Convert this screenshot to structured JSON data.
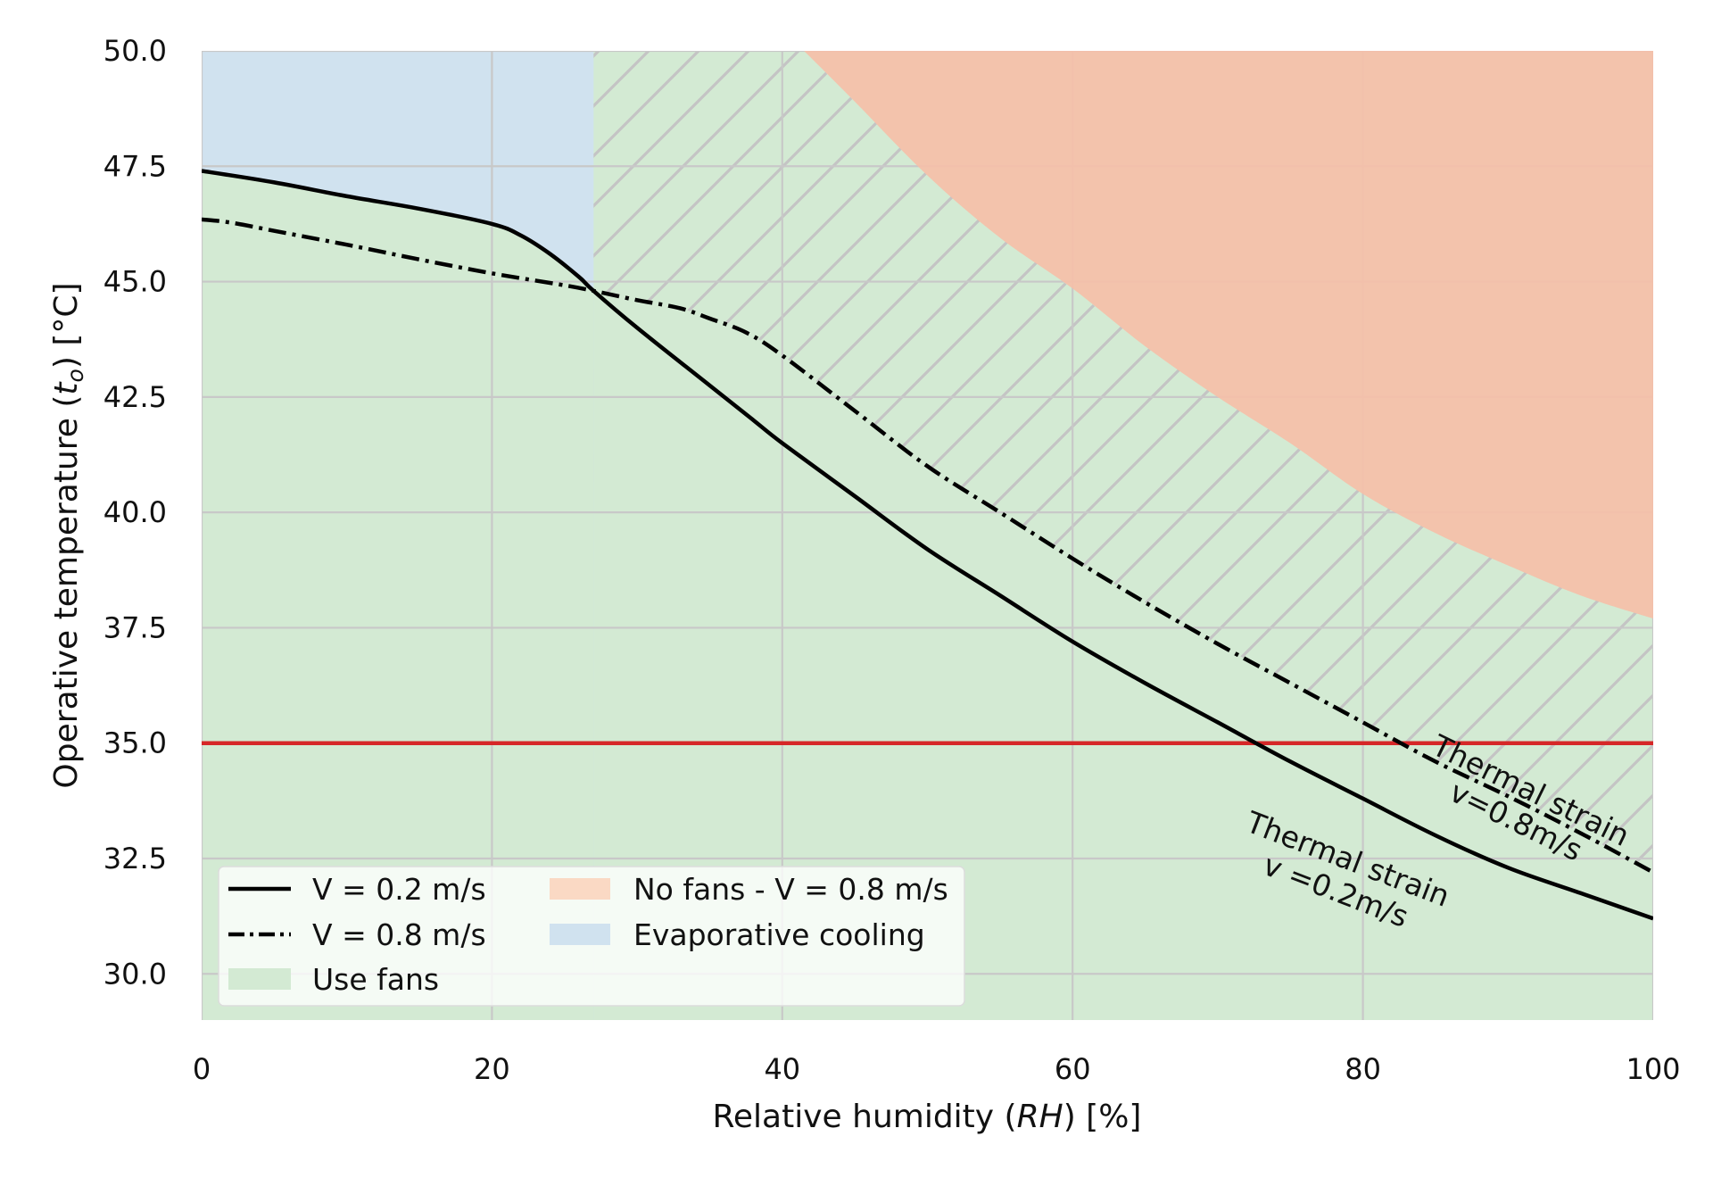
{
  "chart_data": {
    "type": "line",
    "title": "",
    "xlabel_parts": [
      "Relative humidity (",
      "RH",
      ") [%]"
    ],
    "ylabel_parts": [
      "Operative temperature (",
      "t",
      "o",
      ") [°C]"
    ],
    "xlim": [
      0,
      100
    ],
    "ylim": [
      29.0,
      50.0
    ],
    "xticks": [
      0,
      20,
      40,
      60,
      80,
      100
    ],
    "xtick_labels": [
      "0",
      "20",
      "40",
      "60",
      "80",
      "100"
    ],
    "yticks": [
      30.0,
      32.5,
      35.0,
      37.5,
      40.0,
      42.5,
      45.0,
      47.5,
      50.0
    ],
    "ytick_labels": [
      "30.0",
      "32.5",
      "35.0",
      "37.5",
      "40.0",
      "42.5",
      "45.0",
      "47.5",
      "50.0"
    ],
    "grid": true,
    "legend_position": "lower-left",
    "series": [
      {
        "name": "V = 0.2 m/s",
        "style": "solid",
        "color": "#000000",
        "points": [
          [
            0,
            47.4
          ],
          [
            5,
            47.15
          ],
          [
            10,
            46.85
          ],
          [
            15,
            46.58
          ],
          [
            20,
            46.25
          ],
          [
            22,
            46.0
          ],
          [
            24,
            45.6
          ],
          [
            26,
            45.1
          ],
          [
            27,
            44.8
          ],
          [
            30,
            44.0
          ],
          [
            35,
            42.75
          ],
          [
            38,
            42.0
          ],
          [
            40,
            41.5
          ],
          [
            45,
            40.35
          ],
          [
            50,
            39.2
          ],
          [
            55,
            38.2
          ],
          [
            60,
            37.2
          ],
          [
            65,
            36.3
          ],
          [
            70,
            35.45
          ],
          [
            75,
            34.6
          ],
          [
            80,
            33.8
          ],
          [
            85,
            33.0
          ],
          [
            90,
            32.3
          ],
          [
            95,
            31.75
          ],
          [
            100,
            31.2
          ]
        ]
      },
      {
        "name": "V = 0.8 m/s",
        "style": "dash-dot",
        "color": "#000000",
        "points": [
          [
            0,
            46.35
          ],
          [
            2,
            46.28
          ],
          [
            5,
            46.1
          ],
          [
            10,
            45.8
          ],
          [
            15,
            45.48
          ],
          [
            20,
            45.18
          ],
          [
            25,
            44.92
          ],
          [
            27,
            44.8
          ],
          [
            30,
            44.6
          ],
          [
            33,
            44.42
          ],
          [
            35,
            44.2
          ],
          [
            37.5,
            43.9
          ],
          [
            40,
            43.4
          ],
          [
            45,
            42.2
          ],
          [
            50,
            41.0
          ],
          [
            55,
            40.0
          ],
          [
            60,
            39.0
          ],
          [
            65,
            38.05
          ],
          [
            70,
            37.15
          ],
          [
            75,
            36.3
          ],
          [
            80,
            35.45
          ],
          [
            85,
            34.6
          ],
          [
            90,
            33.85
          ],
          [
            95,
            33.05
          ],
          [
            100,
            32.2
          ]
        ]
      }
    ],
    "regions": [
      {
        "name": "Use fans",
        "color": "#d3ead3"
      },
      {
        "name": "No fans - V = 0.8 m/s",
        "color": "#f5c0a9",
        "legend_color": "#fad9c4",
        "boundary": [
          [
            41.5,
            50.0
          ],
          [
            45,
            48.9
          ],
          [
            50,
            47.3
          ],
          [
            55,
            45.95
          ],
          [
            60,
            44.85
          ],
          [
            65,
            43.6
          ],
          [
            70,
            42.5
          ],
          [
            75,
            41.5
          ],
          [
            80,
            40.4
          ],
          [
            85,
            39.55
          ],
          [
            90,
            38.85
          ],
          [
            95,
            38.2
          ],
          [
            100,
            37.7
          ]
        ]
      },
      {
        "name": "Evaporative cooling",
        "color": "#d0e2ef",
        "x_range": [
          0,
          27
        ]
      }
    ],
    "hatch": {
      "x_from": 27,
      "pattern": "diagonal"
    },
    "threshold_line": {
      "y": 35.0,
      "color": "#d62728"
    },
    "annotations": [
      {
        "lines": [
          "Thermal strain",
          "v=0.8m/s"
        ],
        "x": 91.0,
        "y": 33.6,
        "rotation": 26
      },
      {
        "lines": [
          "Thermal strain",
          "v =0.2m/s"
        ],
        "x": 78.5,
        "y": 32.1,
        "rotation": 21
      }
    ]
  }
}
